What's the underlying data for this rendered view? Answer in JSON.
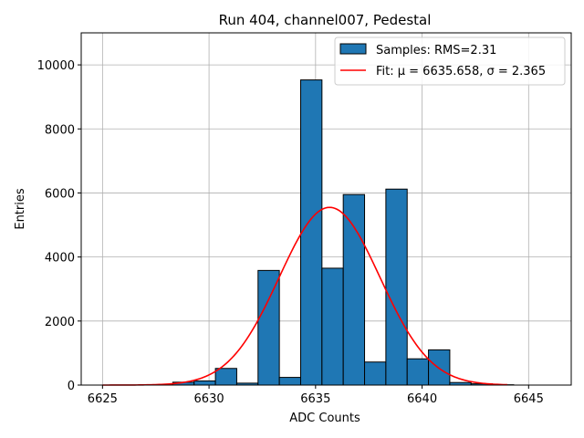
{
  "chart_data": {
    "type": "bar",
    "title": "Run 404, channel007, Pedestal",
    "xlabel": "ADC Counts",
    "ylabel": "Entries",
    "xlim": [
      6624,
      6647
    ],
    "ylim": [
      0,
      11000
    ],
    "grid": true,
    "xticks": [
      6625,
      6630,
      6635,
      6640,
      6645
    ],
    "yticks": [
      0,
      2000,
      4000,
      6000,
      8000,
      10000
    ],
    "bar_color": "#1f77b4",
    "bar_edge_color": "#000000",
    "fit_color": "#ff0000",
    "bins": [
      {
        "left": 6627.3,
        "right": 6628.3,
        "count": 10
      },
      {
        "left": 6628.3,
        "right": 6629.3,
        "count": 90
      },
      {
        "left": 6629.3,
        "right": 6630.3,
        "count": 130
      },
      {
        "left": 6630.3,
        "right": 6631.3,
        "count": 520
      },
      {
        "left": 6631.3,
        "right": 6632.3,
        "count": 60
      },
      {
        "left": 6632.3,
        "right": 6633.3,
        "count": 3580
      },
      {
        "left": 6633.3,
        "right": 6634.3,
        "count": 240
      },
      {
        "left": 6634.3,
        "right": 6635.3,
        "count": 9530
      },
      {
        "left": 6635.3,
        "right": 6636.3,
        "count": 3650
      },
      {
        "left": 6636.3,
        "right": 6637.3,
        "count": 5950
      },
      {
        "left": 6637.3,
        "right": 6638.3,
        "count": 720
      },
      {
        "left": 6638.3,
        "right": 6639.3,
        "count": 6120
      },
      {
        "left": 6639.3,
        "right": 6640.3,
        "count": 820
      },
      {
        "left": 6640.3,
        "right": 6641.3,
        "count": 1100
      },
      {
        "left": 6641.3,
        "right": 6642.3,
        "count": 80
      },
      {
        "left": 6642.3,
        "right": 6643.3,
        "count": 40
      },
      {
        "left": 6643.3,
        "right": 6644.3,
        "count": 10
      }
    ],
    "fit": {
      "mu": 6635.658,
      "sigma": 2.365,
      "amplitude": 5550,
      "x_range": [
        6625,
        6644
      ]
    },
    "legend": {
      "position": "top-right",
      "samples_label": "Samples: RMS=2.31",
      "fit_label": "Fit: μ = 6635.658, σ = 2.365"
    }
  }
}
